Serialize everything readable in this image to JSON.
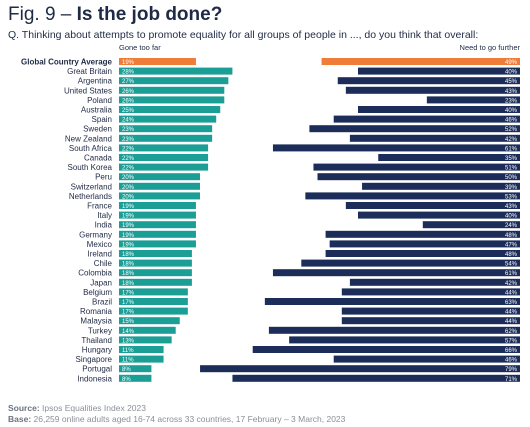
{
  "figure": {
    "label": "Fig. 9 – ",
    "title": "Is the job done?"
  },
  "question": "Q. Thinking about attempts to promote equality for all groups of people in ..., do you think that overall:",
  "source_label": "Source:",
  "source_text": " Ipsos Equalities Index 2023",
  "base_label": "Base:",
  "base_text": " 26,259 online adults aged 16-74 across 33 countries, 17 February – 3 March, 2023",
  "colors": {
    "gone_too_far": "#1a9e96",
    "go_further": "#1c2d5a",
    "average": "#f07c3a",
    "text": "#1f2a44"
  },
  "chart_data": {
    "type": "bar",
    "layout": "diverging-two-panel",
    "series": [
      {
        "name": "Gone too far",
        "values": [
          19,
          28,
          27,
          26,
          26,
          25,
          24,
          23,
          23,
          22,
          22,
          22,
          20,
          20,
          20,
          19,
          19,
          19,
          19,
          19,
          18,
          18,
          18,
          18,
          17,
          17,
          17,
          15,
          14,
          13,
          11,
          11,
          8,
          8
        ]
      },
      {
        "name": "Need to go further",
        "values": [
          49,
          40,
          45,
          43,
          23,
          40,
          46,
          52,
          42,
          61,
          35,
          51,
          50,
          39,
          53,
          43,
          40,
          24,
          48,
          47,
          48,
          54,
          61,
          42,
          44,
          63,
          44,
          44,
          62,
          57,
          66,
          46,
          79,
          71
        ]
      }
    ],
    "categories": [
      "Global Country Average",
      "Great Britain",
      "Argentina",
      "United States",
      "Poland",
      "Australia",
      "Spain",
      "Sweden",
      "New Zealand",
      "South Africa",
      "Canada",
      "South Korea",
      "Peru",
      "Switzerland",
      "Netherlands",
      "France",
      "Italy",
      "India",
      "Germany",
      "Mexico",
      "Ireland",
      "Chile",
      "Colombia",
      "Japan",
      "Belgium",
      "Brazil",
      "Romania",
      "Malaysia",
      "Turkey",
      "Thailand",
      "Hungary",
      "Singapore",
      "Portugal",
      "Indonesia"
    ],
    "highlight": "Global Country Average",
    "value_suffix": "%"
  }
}
